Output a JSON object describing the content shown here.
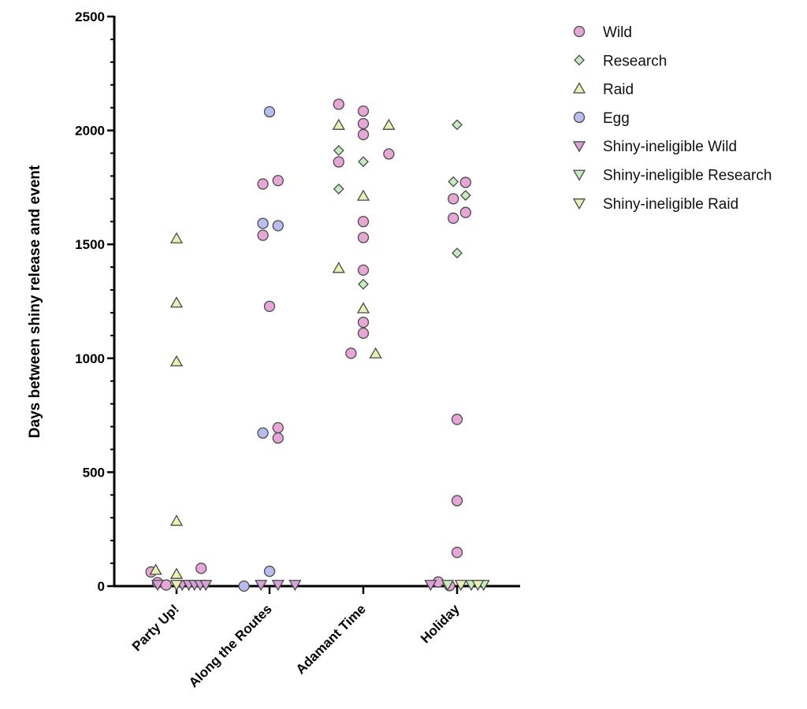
{
  "chart_data": {
    "type": "scatter",
    "title": "",
    "xlabel": "",
    "ylabel": "Days between shiny release and event",
    "ylim": [
      0,
      2500
    ],
    "yticks": [
      0,
      500,
      1000,
      1500,
      2000,
      2500
    ],
    "grid": false,
    "legend_position": "top-right",
    "categories": [
      "Party Up!",
      "Along the Routes",
      "Adamant Time",
      "Holiday"
    ],
    "series": [
      {
        "name": "Wild",
        "marker": "circle",
        "fill": "#e8a6d8",
        "points": [
          {
            "category": "Party Up!",
            "offset": -0.27,
            "y": 62
          },
          {
            "category": "Party Up!",
            "offset": -0.2,
            "y": 15
          },
          {
            "category": "Party Up!",
            "offset": -0.11,
            "y": 5
          },
          {
            "category": "Party Up!",
            "offset": 0.26,
            "y": 78
          },
          {
            "category": "Along the Routes",
            "offset": -0.07,
            "y": 1765
          },
          {
            "category": "Along the Routes",
            "offset": 0.09,
            "y": 1780
          },
          {
            "category": "Along the Routes",
            "offset": -0.07,
            "y": 1540
          },
          {
            "category": "Along the Routes",
            "offset": 0.0,
            "y": 1228
          },
          {
            "category": "Along the Routes",
            "offset": 0.09,
            "y": 695
          },
          {
            "category": "Along the Routes",
            "offset": 0.09,
            "y": 650
          },
          {
            "category": "Adamant Time",
            "offset": -0.26,
            "y": 2115
          },
          {
            "category": "Adamant Time",
            "offset": 0.0,
            "y": 2085
          },
          {
            "category": "Adamant Time",
            "offset": 0.0,
            "y": 2030
          },
          {
            "category": "Adamant Time",
            "offset": 0.0,
            "y": 1982
          },
          {
            "category": "Adamant Time",
            "offset": -0.26,
            "y": 1862
          },
          {
            "category": "Adamant Time",
            "offset": 0.27,
            "y": 1897
          },
          {
            "category": "Adamant Time",
            "offset": 0.0,
            "y": 1600
          },
          {
            "category": "Adamant Time",
            "offset": 0.0,
            "y": 1530
          },
          {
            "category": "Adamant Time",
            "offset": 0.0,
            "y": 1387
          },
          {
            "category": "Adamant Time",
            "offset": 0.0,
            "y": 1158
          },
          {
            "category": "Adamant Time",
            "offset": 0.0,
            "y": 1110
          },
          {
            "category": "Adamant Time",
            "offset": -0.13,
            "y": 1022
          },
          {
            "category": "Holiday",
            "offset": 0.09,
            "y": 1772
          },
          {
            "category": "Holiday",
            "offset": -0.04,
            "y": 1700
          },
          {
            "category": "Holiday",
            "offset": 0.09,
            "y": 1640
          },
          {
            "category": "Holiday",
            "offset": -0.04,
            "y": 1615
          },
          {
            "category": "Holiday",
            "offset": 0.0,
            "y": 732
          },
          {
            "category": "Holiday",
            "offset": 0.0,
            "y": 375
          },
          {
            "category": "Holiday",
            "offset": 0.0,
            "y": 148
          },
          {
            "category": "Holiday",
            "offset": -0.2,
            "y": 18
          },
          {
            "category": "Holiday",
            "offset": -0.08,
            "y": 2
          }
        ]
      },
      {
        "name": "Research",
        "marker": "diamond",
        "fill": "#c6ecbe",
        "points": [
          {
            "category": "Adamant Time",
            "offset": -0.26,
            "y": 1912
          },
          {
            "category": "Adamant Time",
            "offset": 0.0,
            "y": 1863
          },
          {
            "category": "Adamant Time",
            "offset": -0.26,
            "y": 1743
          },
          {
            "category": "Adamant Time",
            "offset": 0.0,
            "y": 1325
          },
          {
            "category": "Holiday",
            "offset": 0.0,
            "y": 2025
          },
          {
            "category": "Holiday",
            "offset": -0.04,
            "y": 1775
          },
          {
            "category": "Holiday",
            "offset": 0.09,
            "y": 1715
          },
          {
            "category": "Holiday",
            "offset": 0.0,
            "y": 1462
          }
        ]
      },
      {
        "name": "Raid",
        "marker": "triangle-up",
        "fill": "#eaf0b0",
        "points": [
          {
            "category": "Party Up!",
            "offset": 0.0,
            "y": 1525
          },
          {
            "category": "Party Up!",
            "offset": 0.0,
            "y": 1243
          },
          {
            "category": "Party Up!",
            "offset": 0.0,
            "y": 985
          },
          {
            "category": "Party Up!",
            "offset": 0.0,
            "y": 285
          },
          {
            "category": "Party Up!",
            "offset": -0.22,
            "y": 70
          },
          {
            "category": "Party Up!",
            "offset": 0.0,
            "y": 52
          },
          {
            "category": "Adamant Time",
            "offset": -0.26,
            "y": 2023
          },
          {
            "category": "Adamant Time",
            "offset": 0.27,
            "y": 2023
          },
          {
            "category": "Adamant Time",
            "offset": 0.0,
            "y": 1712
          },
          {
            "category": "Adamant Time",
            "offset": -0.26,
            "y": 1395
          },
          {
            "category": "Adamant Time",
            "offset": 0.0,
            "y": 1218
          },
          {
            "category": "Adamant Time",
            "offset": 0.13,
            "y": 1020
          }
        ]
      },
      {
        "name": "Egg",
        "marker": "circle",
        "fill": "#b8bcee",
        "points": [
          {
            "category": "Along the Routes",
            "offset": 0.0,
            "y": 2082
          },
          {
            "category": "Along the Routes",
            "offset": -0.07,
            "y": 1592
          },
          {
            "category": "Along the Routes",
            "offset": 0.09,
            "y": 1582
          },
          {
            "category": "Along the Routes",
            "offset": -0.07,
            "y": 672
          },
          {
            "category": "Along the Routes",
            "offset": 0.0,
            "y": 65
          },
          {
            "category": "Along the Routes",
            "offset": -0.27,
            "y": 0
          }
        ]
      },
      {
        "name": "Shiny-ineligible Wild",
        "marker": "triangle-down",
        "fill": "#d9a0d9",
        "points": [
          {
            "category": "Party Up!",
            "offset": -0.2,
            "y": 0
          },
          {
            "category": "Party Up!",
            "offset": 0.06,
            "y": 0
          },
          {
            "category": "Party Up!",
            "offset": 0.13,
            "y": 0
          },
          {
            "category": "Party Up!",
            "offset": 0.19,
            "y": 0
          },
          {
            "category": "Party Up!",
            "offset": 0.25,
            "y": 0
          },
          {
            "category": "Party Up!",
            "offset": 0.31,
            "y": 0
          },
          {
            "category": "Along the Routes",
            "offset": -0.09,
            "y": 0
          },
          {
            "category": "Along the Routes",
            "offset": 0.09,
            "y": 0
          },
          {
            "category": "Along the Routes",
            "offset": 0.27,
            "y": 0
          },
          {
            "category": "Holiday",
            "offset": -0.28,
            "y": 0
          }
        ]
      },
      {
        "name": "Shiny-ineligible Research",
        "marker": "triangle-down",
        "fill": "#c6ecbe",
        "points": [
          {
            "category": "Holiday",
            "offset": -0.1,
            "y": 0
          },
          {
            "category": "Holiday",
            "offset": 0.15,
            "y": 0
          },
          {
            "category": "Holiday",
            "offset": 0.28,
            "y": 0
          }
        ]
      },
      {
        "name": "Shiny-ineligible Raid",
        "marker": "triangle-down",
        "fill": "#eaf0b0",
        "points": [
          {
            "category": "Party Up!",
            "offset": 0.0,
            "y": 0
          },
          {
            "category": "Holiday",
            "offset": 0.04,
            "y": 0
          },
          {
            "category": "Holiday",
            "offset": 0.22,
            "y": 0
          }
        ]
      }
    ]
  }
}
